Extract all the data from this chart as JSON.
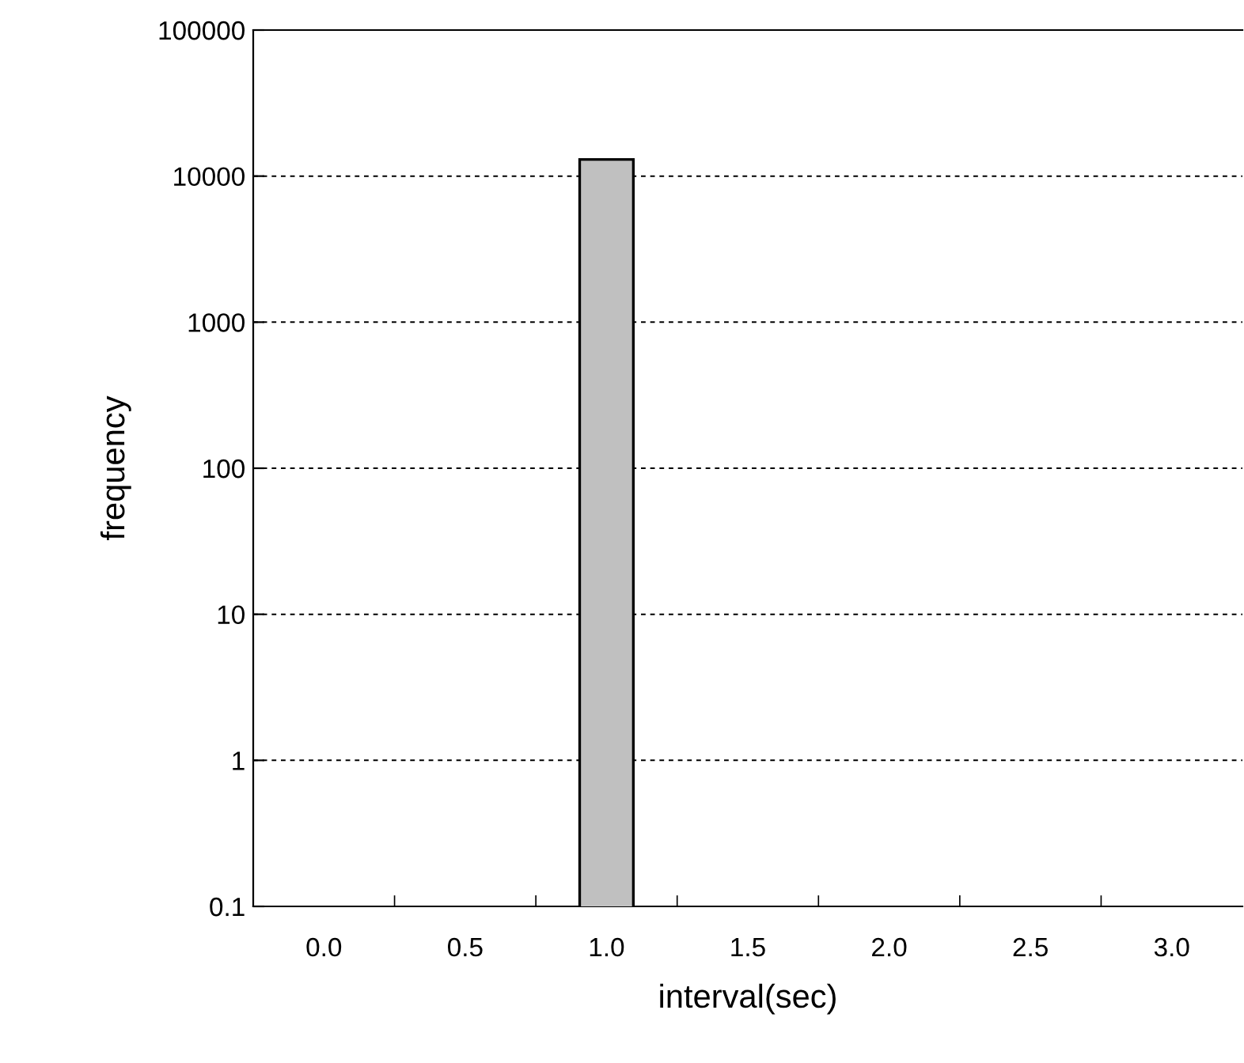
{
  "chart_data": {
    "type": "bar",
    "xlabel": "interval(sec)",
    "ylabel": "frequency",
    "categories": [
      "0.0",
      "0.5",
      "1.0",
      "1.5",
      "2.0",
      "2.5",
      "3.0"
    ],
    "values": [
      null,
      null,
      13000,
      null,
      null,
      null,
      null
    ],
    "color": "#c0c0c0",
    "log": true,
    "ylim": [
      0.1,
      100000
    ],
    "yticks": [
      {
        "value": 0.1,
        "label": "0.1"
      },
      1,
      10,
      100,
      1000,
      10000,
      100000
    ],
    "grid": "y",
    "line_style": "dashed",
    "legend": false
  }
}
